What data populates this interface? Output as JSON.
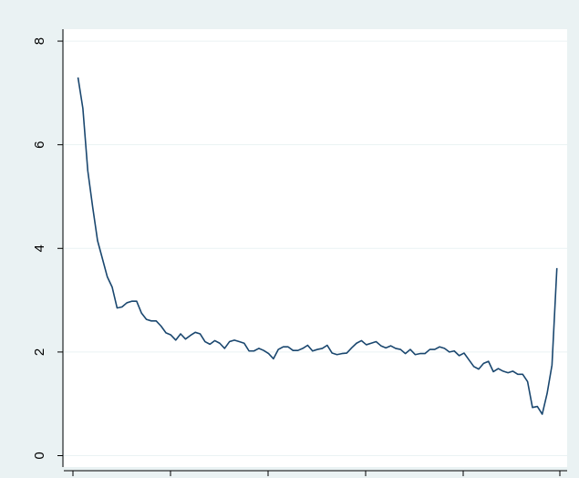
{
  "chart_data": {
    "type": "line",
    "x": [
      1,
      2,
      3,
      4,
      5,
      6,
      7,
      8,
      9,
      10,
      11,
      12,
      13,
      14,
      15,
      16,
      17,
      18,
      19,
      20,
      21,
      22,
      23,
      24,
      25,
      26,
      27,
      28,
      29,
      30,
      31,
      32,
      33,
      34,
      35,
      36,
      37,
      38,
      39,
      40,
      41,
      42,
      43,
      44,
      45,
      46,
      47,
      48,
      49,
      50,
      51,
      52,
      53,
      54,
      55,
      56,
      57,
      58,
      59,
      60,
      61,
      62,
      63,
      64,
      65,
      66,
      67,
      68,
      69,
      70,
      71,
      72,
      73,
      74,
      75,
      76,
      77,
      78,
      79,
      80,
      81,
      82,
      83,
      84,
      85,
      86,
      87,
      88,
      89,
      90,
      91,
      92,
      93,
      94,
      95,
      96,
      97,
      98,
      99
    ],
    "series": [
      {
        "color": "#1a476f",
        "values": [
          7.3,
          6.7,
          5.5,
          4.8,
          4.15,
          3.8,
          3.45,
          3.25,
          2.85,
          2.87,
          2.95,
          2.98,
          2.98,
          2.75,
          2.63,
          2.6,
          2.6,
          2.5,
          2.37,
          2.33,
          2.23,
          2.35,
          2.25,
          2.32,
          2.38,
          2.35,
          2.2,
          2.15,
          2.22,
          2.17,
          2.07,
          2.2,
          2.23,
          2.2,
          2.17,
          2.02,
          2.02,
          2.07,
          2.03,
          1.97,
          1.87,
          2.05,
          2.1,
          2.1,
          2.03,
          2.03,
          2.07,
          2.13,
          2.02,
          2.05,
          2.07,
          2.13,
          1.98,
          1.95,
          1.97,
          1.98,
          2.08,
          2.17,
          2.22,
          2.14,
          2.17,
          2.2,
          2.12,
          2.08,
          2.12,
          2.07,
          2.05,
          1.97,
          2.05,
          1.95,
          1.97,
          1.97,
          2.05,
          2.05,
          2.1,
          2.07,
          2.0,
          2.02,
          1.93,
          1.98,
          1.85,
          1.72,
          1.67,
          1.78,
          1.82,
          1.62,
          1.68,
          1.63,
          1.6,
          1.63,
          1.57,
          1.57,
          1.43,
          0.93,
          0.95,
          0.8,
          1.2,
          1.75,
          3.62
        ]
      }
    ],
    "xlim": [
      -1.9,
      101.1
    ],
    "ylim": [
      -0.22,
      8.23
    ],
    "yticks": [
      0,
      2,
      4,
      6,
      8
    ],
    "grid": true
  }
}
